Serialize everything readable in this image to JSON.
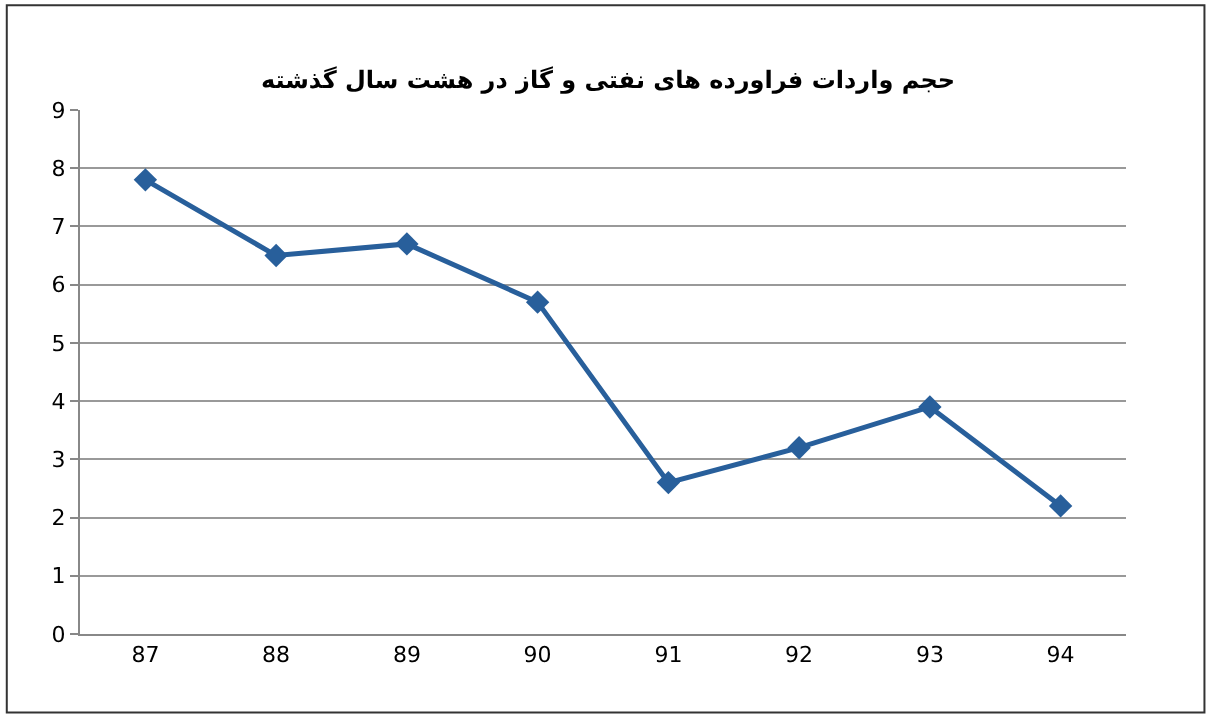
{
  "chart_data": {
    "type": "line",
    "title": "حجم واردات فراورده های نفتی و گاز در هشت سال گذشته",
    "categories": [
      "87",
      "88",
      "89",
      "90",
      "91",
      "92",
      "93",
      "94"
    ],
    "series": [
      {
        "color": "#285f9b",
        "values": [
          7.8,
          6.5,
          6.7,
          5.7,
          2.6,
          3.2,
          3.9,
          2.2
        ]
      }
    ],
    "ylim": [
      0,
      9
    ],
    "yticks": [
      0,
      1,
      2,
      3,
      4,
      5,
      6,
      7,
      8,
      9
    ],
    "grid": "y",
    "marker": "diamond",
    "line_style": "solid",
    "legend": false
  }
}
